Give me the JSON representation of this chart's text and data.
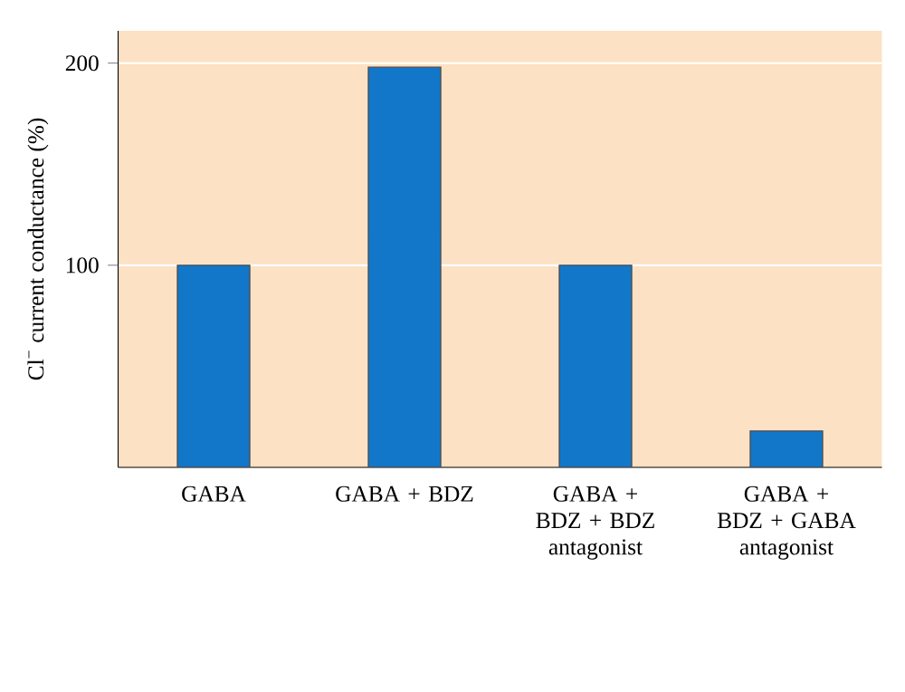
{
  "chart_data": {
    "type": "bar",
    "ylabel": "Cl$^{−}$ current conductance (%)",
    "categories": [
      "GABA",
      "GABA + BDZ",
      "GABA + BDZ + BDZ antagonist",
      "GABA + BDZ + GABA antagonist"
    ],
    "values": [
      100,
      198,
      100,
      18
    ],
    "color": "#1277c9",
    "ylim": [
      0,
      216
    ],
    "yticks": [
      100,
      200
    ],
    "grid": "y"
  }
}
